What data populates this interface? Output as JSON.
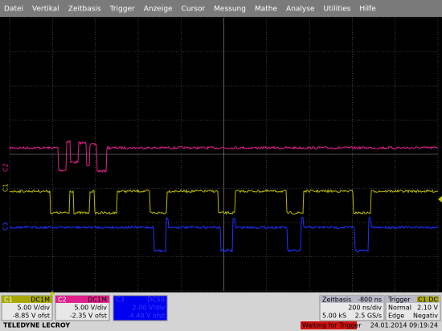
{
  "menu": {
    "items": [
      "Datei",
      "Vertikal",
      "Zeitbasis",
      "Trigger",
      "Anzeige",
      "Cursor",
      "Messung",
      "Mathe",
      "Analyse",
      "Utilities",
      "Hilfe"
    ]
  },
  "trace_labels": {
    "c2": "C2",
    "c1": "C1",
    "c3": "C3"
  },
  "channels": [
    {
      "name": "C1",
      "coupling": "DC1M",
      "scale": "5.00 V/div",
      "offset": "-8.85 V ofst"
    },
    {
      "name": "C2",
      "coupling": "DC1M",
      "scale": "5.00 V/div",
      "offset": "-2.35 V ofst"
    },
    {
      "name": "C3",
      "coupling": "DC50",
      "scale": "2.00 V/div",
      "offset": "-4.40 V ofst"
    }
  ],
  "timebase": {
    "title": "Zeitbasis",
    "delay": "-800 ns",
    "scale": "200 ns/div",
    "samples": "5.00 kS",
    "rate": "2.5 GS/s"
  },
  "trigger": {
    "title": "Trigger",
    "source": "C1 DC",
    "mode": "Normal",
    "level": "2.10 V",
    "type": "Edge",
    "slope": "Negativ"
  },
  "footer": {
    "brand": "TELEDYNE LECROY",
    "status": "Waiting for Trigger",
    "datetime": "24.01.2014 09:19:24"
  }
}
